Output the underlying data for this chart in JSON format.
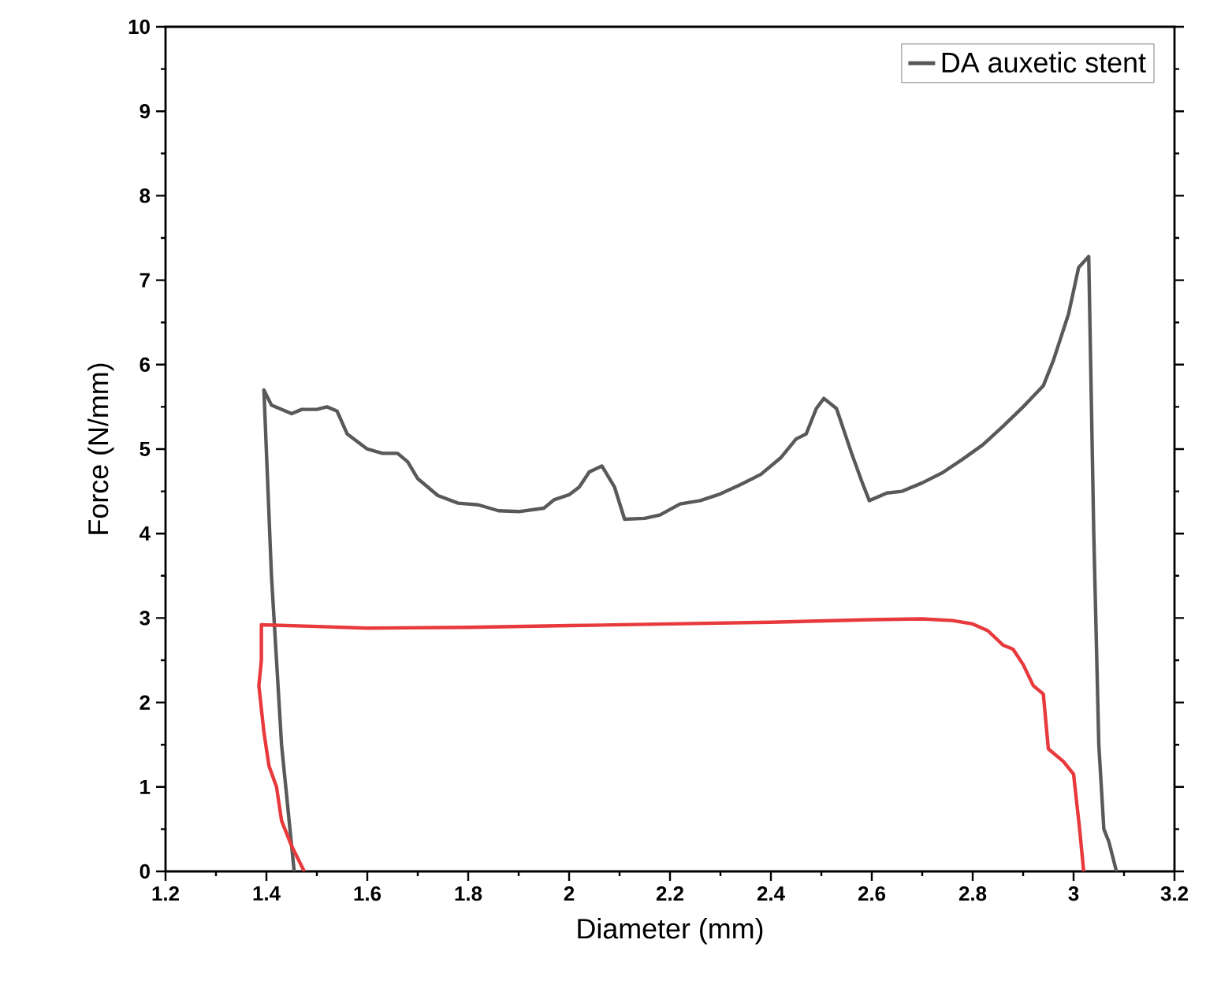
{
  "chart_data": {
    "type": "line",
    "xlabel": "Diameter (mm)",
    "ylabel": "Force (N/mm)",
    "xlim": [
      1.2,
      3.2
    ],
    "ylim": [
      0,
      10
    ],
    "xticks": [
      1.2,
      1.4,
      1.6,
      1.8,
      2,
      2.2,
      2.4,
      2.6,
      2.8,
      3,
      3.2
    ],
    "yticks": [
      0,
      1,
      2,
      3,
      4,
      5,
      6,
      7,
      8,
      9,
      10
    ],
    "legend": "top right",
    "series": [
      {
        "name": "DA auxetic stent",
        "color": "#595959",
        "x": [
          1.455,
          1.43,
          1.41,
          1.395,
          1.41,
          1.45,
          1.47,
          1.5,
          1.52,
          1.54,
          1.56,
          1.6,
          1.63,
          1.66,
          1.68,
          1.7,
          1.74,
          1.78,
          1.82,
          1.86,
          1.9,
          1.95,
          1.97,
          2.0,
          2.02,
          2.04,
          2.065,
          2.09,
          2.11,
          2.15,
          2.18,
          2.22,
          2.26,
          2.3,
          2.34,
          2.38,
          2.42,
          2.45,
          2.47,
          2.49,
          2.505,
          2.53,
          2.56,
          2.58,
          2.595,
          2.63,
          2.66,
          2.7,
          2.74,
          2.78,
          2.82,
          2.86,
          2.9,
          2.94,
          2.96,
          2.99,
          3.01,
          3.03,
          3.04,
          3.05,
          3.06,
          3.07,
          3.085
        ],
        "values": [
          0,
          1.5,
          3.5,
          5.7,
          5.52,
          5.42,
          5.47,
          5.47,
          5.5,
          5.45,
          5.18,
          5.0,
          4.95,
          4.95,
          4.85,
          4.65,
          4.45,
          4.36,
          4.34,
          4.27,
          4.26,
          4.3,
          4.4,
          4.46,
          4.55,
          4.73,
          4.8,
          4.55,
          4.17,
          4.18,
          4.22,
          4.35,
          4.39,
          4.47,
          4.58,
          4.7,
          4.9,
          5.12,
          5.18,
          5.48,
          5.6,
          5.48,
          4.95,
          4.62,
          4.39,
          4.48,
          4.5,
          4.6,
          4.72,
          4.88,
          5.05,
          5.27,
          5.5,
          5.75,
          6.05,
          6.6,
          7.15,
          7.28,
          4.0,
          1.5,
          0.5,
          0.35,
          0
        ]
      },
      {
        "color": "#e8393c",
        "x": [
          1.475,
          1.45,
          1.43,
          1.42,
          1.405,
          1.395,
          1.385,
          1.39,
          1.39,
          1.5,
          1.6,
          1.8,
          2.0,
          2.2,
          2.4,
          2.6,
          2.7,
          2.76,
          2.8,
          2.83,
          2.86,
          2.88,
          2.9,
          2.92,
          2.94,
          2.95,
          2.98,
          3.0,
          3.012,
          3.02
        ],
        "values": [
          0,
          0.3,
          0.6,
          1.0,
          1.25,
          1.65,
          2.2,
          2.5,
          2.92,
          2.9,
          2.88,
          2.89,
          2.91,
          2.93,
          2.95,
          2.98,
          2.99,
          2.97,
          2.93,
          2.85,
          2.68,
          2.63,
          2.45,
          2.2,
          2.1,
          1.45,
          1.3,
          1.15,
          0.5,
          0
        ]
      }
    ]
  }
}
